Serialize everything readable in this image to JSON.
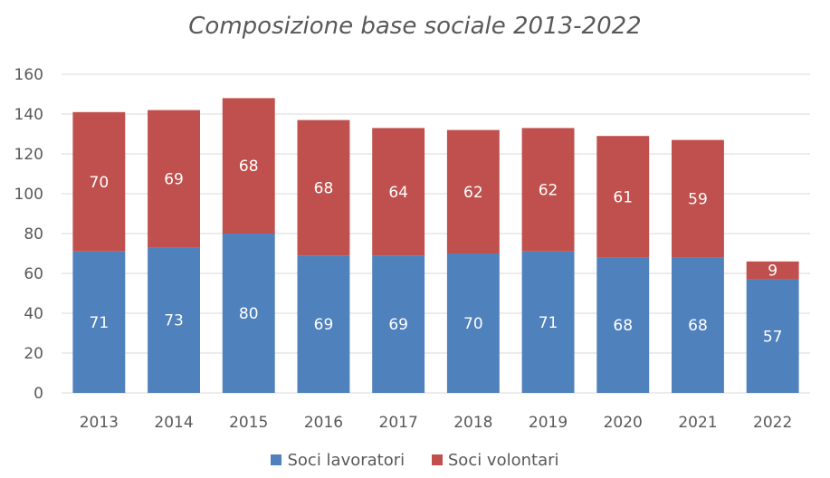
{
  "chart_data": {
    "type": "bar",
    "stacked": true,
    "title": "Composizione base sociale  2013-2022",
    "categories": [
      "2013",
      "2014",
      "2015",
      "2016",
      "2017",
      "2018",
      "2019",
      "2020",
      "2021",
      "2022"
    ],
    "series": [
      {
        "name": "Soci lavoratori",
        "color": "#4f81bd",
        "values": [
          71,
          73,
          80,
          69,
          69,
          70,
          71,
          68,
          68,
          57
        ]
      },
      {
        "name": "Soci volontari",
        "color": "#c0504d",
        "values": [
          70,
          69,
          68,
          68,
          64,
          62,
          62,
          61,
          59,
          9
        ]
      }
    ],
    "ylim": [
      0,
      160
    ],
    "yticks": [
      0,
      20,
      40,
      60,
      80,
      100,
      120,
      140,
      160
    ],
    "grid": true,
    "legend": "bottom"
  }
}
